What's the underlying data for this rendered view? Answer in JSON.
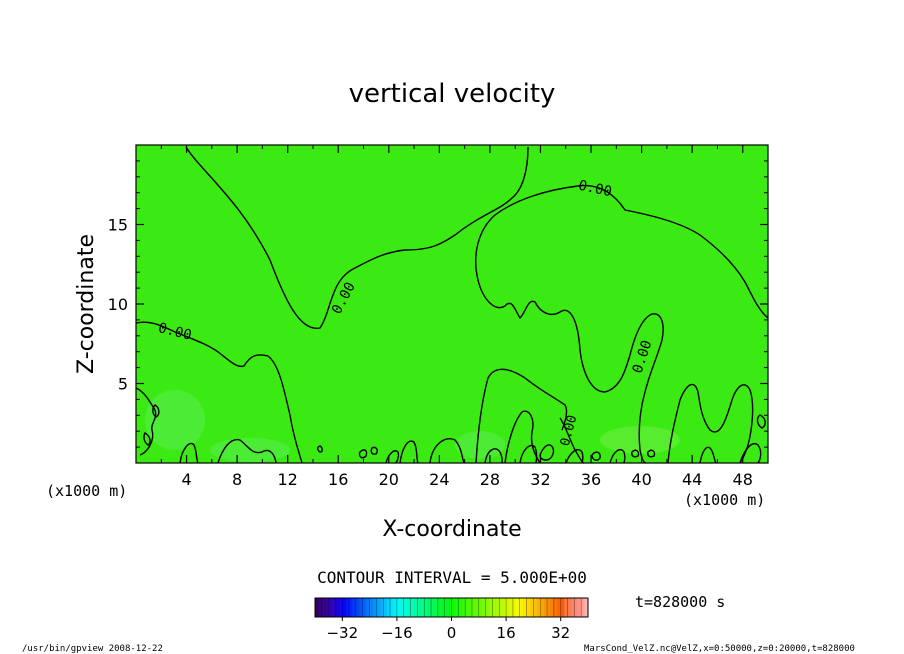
{
  "chart_data": {
    "type": "heatmap",
    "title": "vertical velocity",
    "xlabel": "X-coordinate",
    "ylabel": "Z-coordinate",
    "x_unit": "(x1000 m)",
    "y_unit": "(x1000 m)",
    "xlim": [
      0,
      50
    ],
    "ylim": [
      0,
      20
    ],
    "x_ticks": [
      4,
      8,
      12,
      16,
      20,
      24,
      28,
      32,
      36,
      40,
      44,
      48
    ],
    "y_ticks": [
      5,
      10,
      15
    ],
    "contour_level_label": "0.00",
    "contour_interval_text": "CONTOUR INTERVAL = 5.000E+00",
    "colorbar": {
      "ticks": [
        -32,
        -16,
        0,
        16,
        32
      ],
      "range": [
        -40,
        40
      ],
      "tick_labels": [
        "−32",
        "−16",
        "0",
        "16",
        "32"
      ]
    },
    "field_value_approx": 0,
    "time_label": "t=828000 s"
  },
  "footer": {
    "left": "/usr/bin/gpview   2008-12-22",
    "right": "MarsCond_VelZ.nc@VelZ,x=0:50000,z=0:20000,t=828000"
  },
  "colors": {
    "field": "#3bea12",
    "contour": "#000000",
    "background": "#ffffff"
  }
}
